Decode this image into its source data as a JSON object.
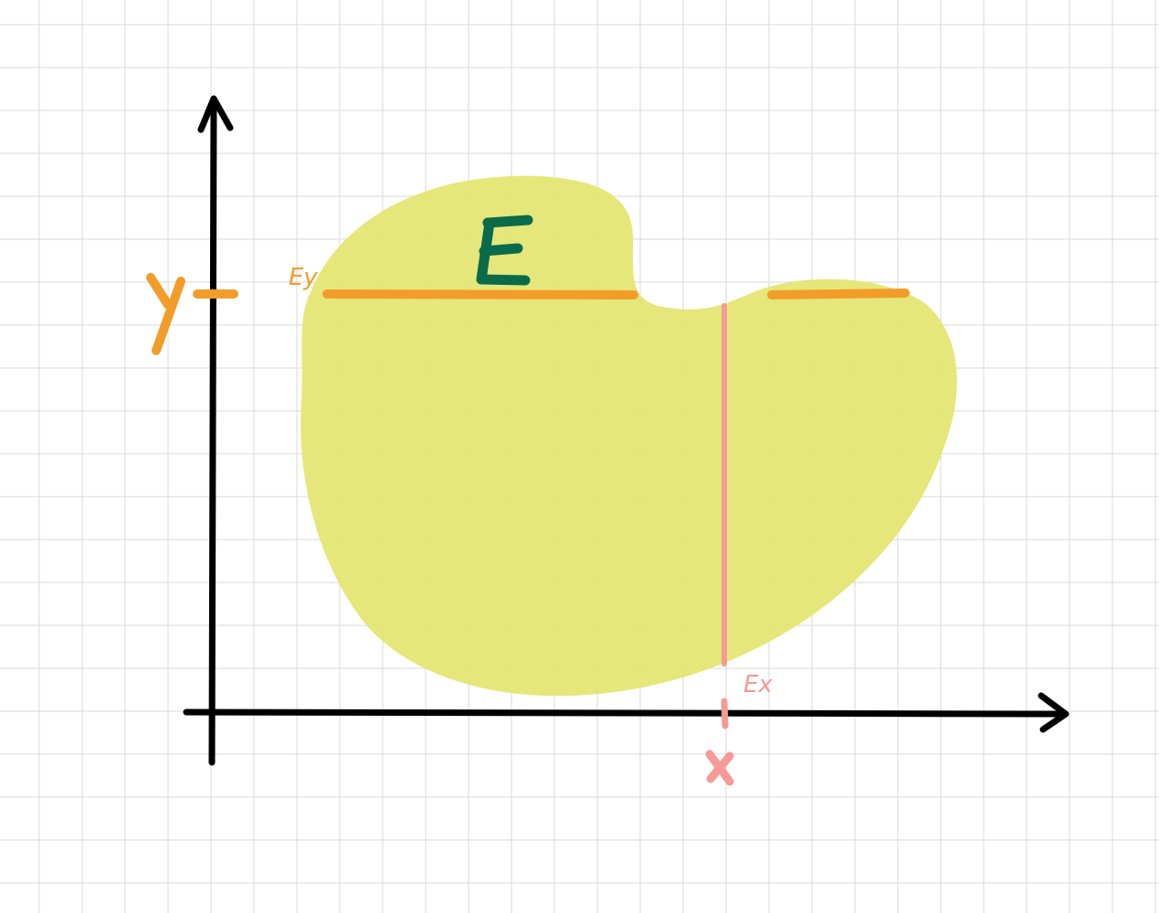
{
  "colors": {
    "background": "#ffffff",
    "grid": "#d8d8d8",
    "axis": "#000000",
    "region_fill": "#e3e56f",
    "y_section": "#f29d2a",
    "x_section": "#f59a96",
    "set_label": "#0a6b4a"
  },
  "labels": {
    "set_name": "E",
    "y_value": "y",
    "x_value": "x",
    "y_section": "Ey",
    "x_section": "Ex"
  }
}
